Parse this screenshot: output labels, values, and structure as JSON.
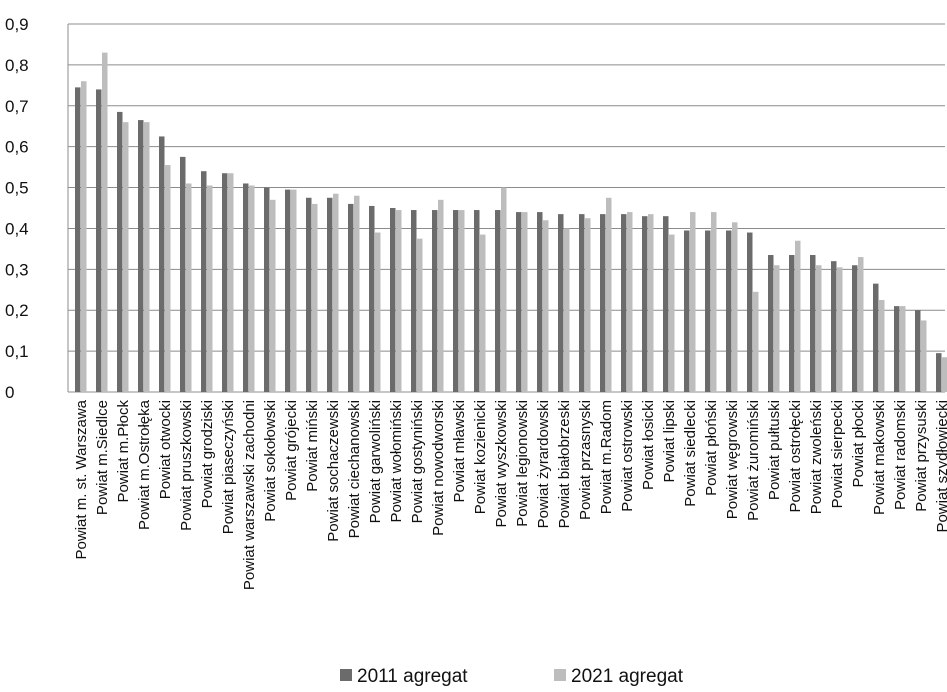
{
  "chart_data": {
    "type": "bar",
    "categories": [
      "Powiat m. st. Warszawa",
      "Powiat m.Siedlce",
      "Powiat m.Płock",
      "Powiat m.Ostrołęka",
      "Powiat otwocki",
      "Powiat pruszkowski",
      "Powiat grodziski",
      "Powiat piaseczyński",
      "Powiat warszawski zachodni",
      "Powiat sokołowski",
      "Powiat grójecki",
      "Powiat miński",
      "Powiat sochaczewski",
      "Powiat ciechanowski",
      "Powiat garwoliński",
      "Powiat wołomiński",
      "Powiat gostyniński",
      "Powiat nowodworski",
      "Powiat mławski",
      "Powiat kozienicki",
      "Powiat wyszkowski",
      "Powiat legionowski",
      "Powiat żyrardowski",
      "Powiat białobrzeski",
      "Powiat przasnyski",
      "Powiat m.Radom",
      "Powiat ostrowski",
      "Powiat łosicki",
      "Powiat lipski",
      "Powiat siedlecki",
      "Powiat płoński",
      "Powiat węgrowski",
      "Powiat żuromiński",
      "Powiat pułtuski",
      "Powiat ostrołęcki",
      "Powiat zwoleński",
      "Powiat sierpecki",
      "Powiat płocki",
      "Powiat makowski",
      "Powiat radomski",
      "Powiat przysuski",
      "Powiat szydłowiecki"
    ],
    "series": [
      {
        "name": "2011 agregat",
        "color": "#6b6b6b",
        "values": [
          0.745,
          0.74,
          0.685,
          0.665,
          0.625,
          0.575,
          0.54,
          0.535,
          0.51,
          0.5,
          0.495,
          0.475,
          0.475,
          0.46,
          0.455,
          0.45,
          0.445,
          0.445,
          0.445,
          0.445,
          0.445,
          0.44,
          0.44,
          0.435,
          0.435,
          0.435,
          0.435,
          0.43,
          0.43,
          0.395,
          0.395,
          0.395,
          0.39,
          0.335,
          0.335,
          0.335,
          0.32,
          0.31,
          0.265,
          0.21,
          0.2,
          0.095
        ]
      },
      {
        "name": "2021 agregat",
        "color": "#bdbdbd",
        "values": [
          0.76,
          0.83,
          0.66,
          0.66,
          0.555,
          0.51,
          0.505,
          0.535,
          0.505,
          0.47,
          0.495,
          0.46,
          0.485,
          0.48,
          0.39,
          0.445,
          0.375,
          0.47,
          0.445,
          0.385,
          0.5,
          0.44,
          0.42,
          0.4,
          0.425,
          0.475,
          0.44,
          0.435,
          0.385,
          0.44,
          0.44,
          0.415,
          0.245,
          0.31,
          0.37,
          0.31,
          0.305,
          0.33,
          0.225,
          0.21,
          0.175,
          0.085
        ]
      }
    ],
    "yticks": [
      "0",
      "0,1",
      "0,2",
      "0,3",
      "0,4",
      "0,5",
      "0,6",
      "0,7",
      "0,8",
      "0,9"
    ],
    "ylim": [
      0,
      0.9
    ],
    "grid": true,
    "legend": "bottom"
  }
}
